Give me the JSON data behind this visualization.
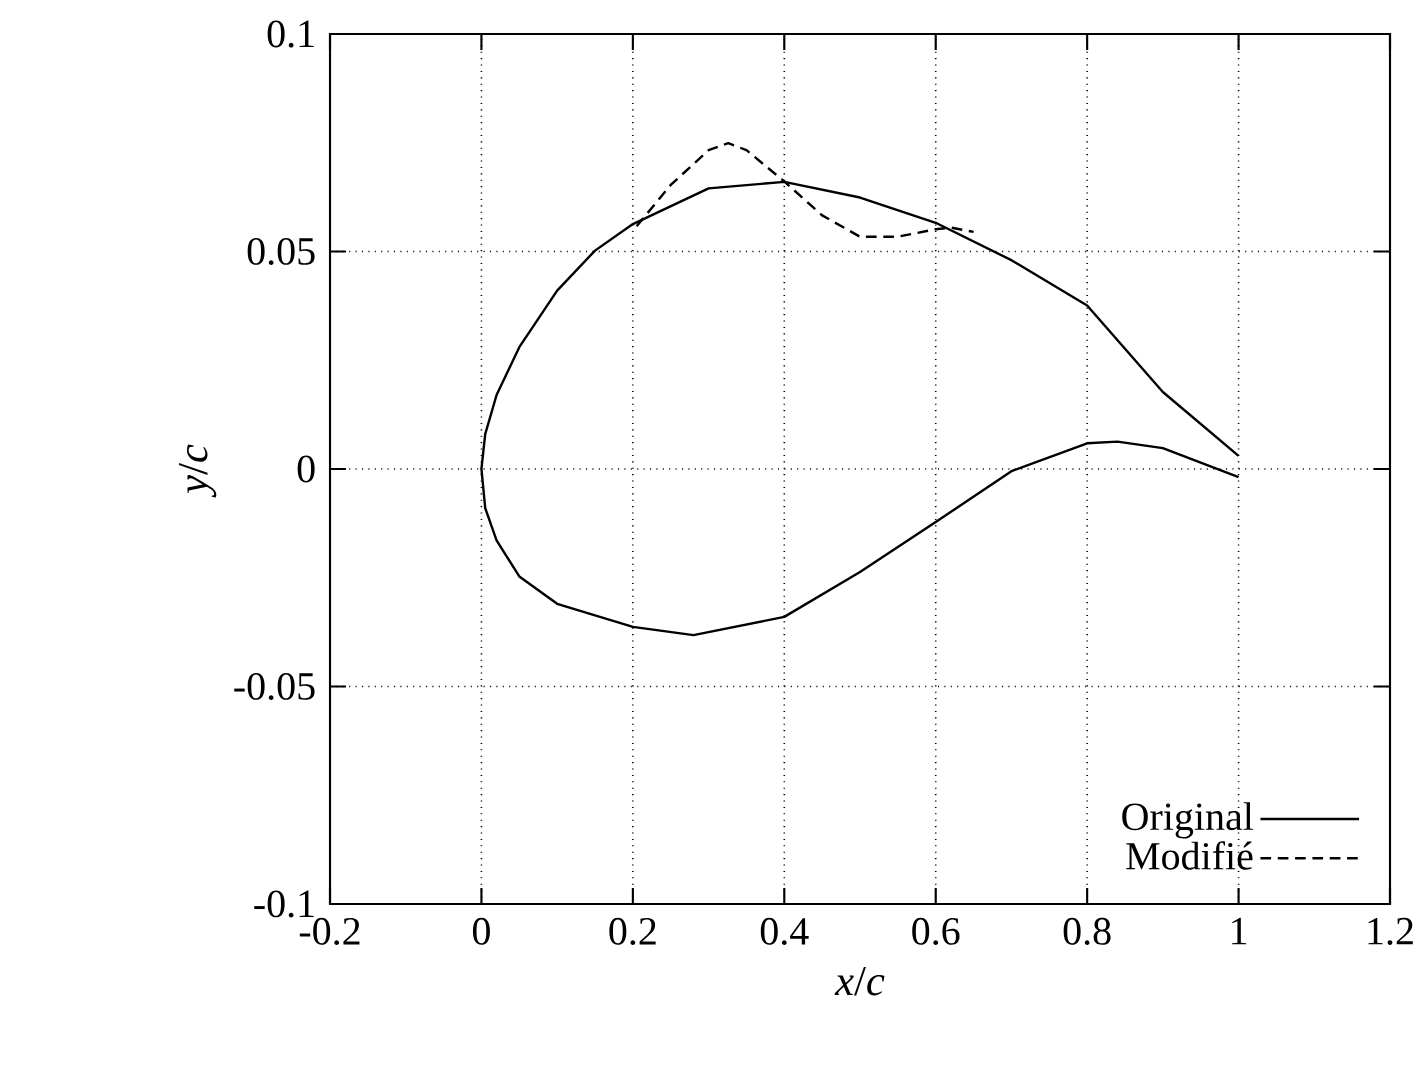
{
  "chart_data": {
    "type": "line",
    "xlabel": "*x*/*c*",
    "ylabel": "*y*/*c*",
    "xlim": [
      -0.2,
      1.2
    ],
    "ylim": [
      -0.1,
      0.1
    ],
    "xticks": [
      -0.2,
      0,
      0.2,
      0.4,
      0.6,
      0.8,
      1,
      1.2
    ],
    "yticks": [
      -0.1,
      -0.05,
      0,
      0.05,
      0.1
    ],
    "grid": true,
    "legend": "bottom right",
    "marker": "none",
    "series": [
      {
        "name": "Original",
        "color": "#000000",
        "line_style": "solid",
        "x": [
          1,
          0.9,
          0.8,
          0.7,
          0.6,
          0.5,
          0.4,
          0.3,
          0.2,
          0.15,
          0.1,
          0.05,
          0.02,
          0.005,
          0,
          0.005,
          0.02,
          0.05,
          0.1,
          0.2,
          0.28,
          0.4,
          0.5,
          0.6,
          0.7,
          0.8,
          0.84,
          0.9,
          1
        ],
        "values": [
          0.003,
          0.0177,
          0.0376,
          0.048,
          0.0566,
          0.0624,
          0.066,
          0.0645,
          0.0563,
          0.0502,
          0.041,
          0.028,
          0.017,
          0.008,
          0,
          -0.009,
          -0.0164,
          -0.0247,
          -0.031,
          -0.0363,
          -0.0382,
          -0.034,
          -0.0237,
          -0.0122,
          -0.0005,
          0.0059,
          0.0063,
          0.0048,
          -0.0019
        ]
      },
      {
        "name": "Modifié",
        "color": "#000000",
        "line_style": "dashed",
        "x": [
          0.205,
          0.25,
          0.3,
          0.326,
          0.35,
          0.4,
          0.45,
          0.5,
          0.55,
          0.6,
          0.62,
          0.65
        ],
        "values": [
          0.0558,
          0.0653,
          0.0733,
          0.0749,
          0.0733,
          0.0661,
          0.0583,
          0.0534,
          0.0534,
          0.0551,
          0.0555,
          0.0545
        ]
      }
    ]
  }
}
